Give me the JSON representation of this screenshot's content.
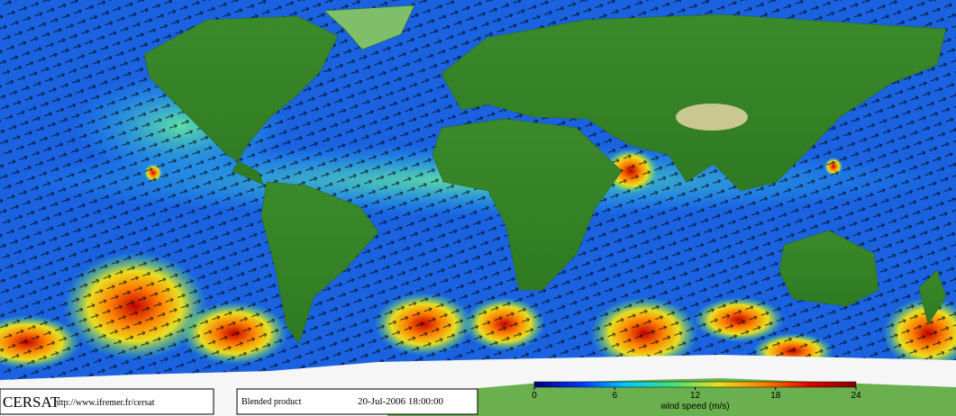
{
  "footer": {
    "logo": "CERSAT",
    "url": "http://www.ifremer.fr/cersat",
    "product": "Blended product",
    "timestamp": "20-Jul-2006 18:00:00"
  },
  "colorbar": {
    "label": "wind speed (m/s)",
    "lim": [
      0,
      24
    ],
    "ticks": [
      0,
      6,
      12,
      18,
      24
    ],
    "colors": [
      "#00007a",
      "#0033ff",
      "#00c8ff",
      "#40e080",
      "#e8e020",
      "#ff8000",
      "#e00000",
      "#800000"
    ]
  }
}
